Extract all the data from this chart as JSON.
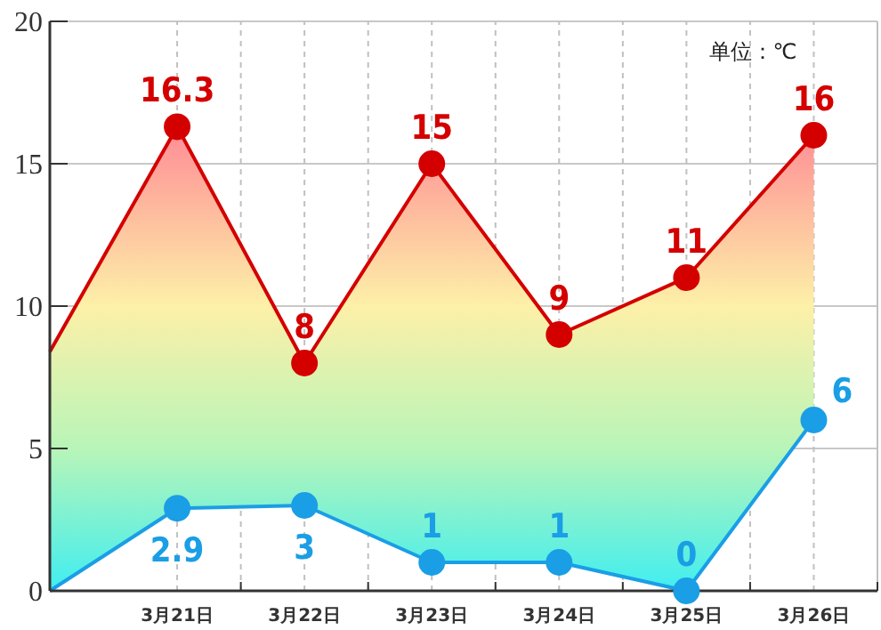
{
  "chart_data": {
    "type": "area",
    "categories": [
      null,
      "3月21日",
      "3月22日",
      "3月23日",
      "3月24日",
      "3月25日",
      "3月26日"
    ],
    "ylim": [
      0,
      20
    ],
    "yticks": [
      0,
      5,
      10,
      15,
      20
    ],
    "grid": true,
    "marker": "circle",
    "annotations": [
      "单位：℃"
    ],
    "series": [
      {
        "color": "#d40000",
        "values": [
          8.4,
          16.3,
          8,
          15,
          9,
          11,
          16
        ],
        "value_labels": [
          null,
          "16.3",
          "8",
          "15",
          "9",
          "11",
          "16"
        ]
      },
      {
        "type": "line",
        "color": "#1a9ee6",
        "values": [
          0,
          2.9,
          3,
          1,
          1,
          0,
          6
        ],
        "value_labels": [
          null,
          "2.9",
          "3",
          "1",
          "1",
          "0",
          "6"
        ]
      }
    ]
  }
}
